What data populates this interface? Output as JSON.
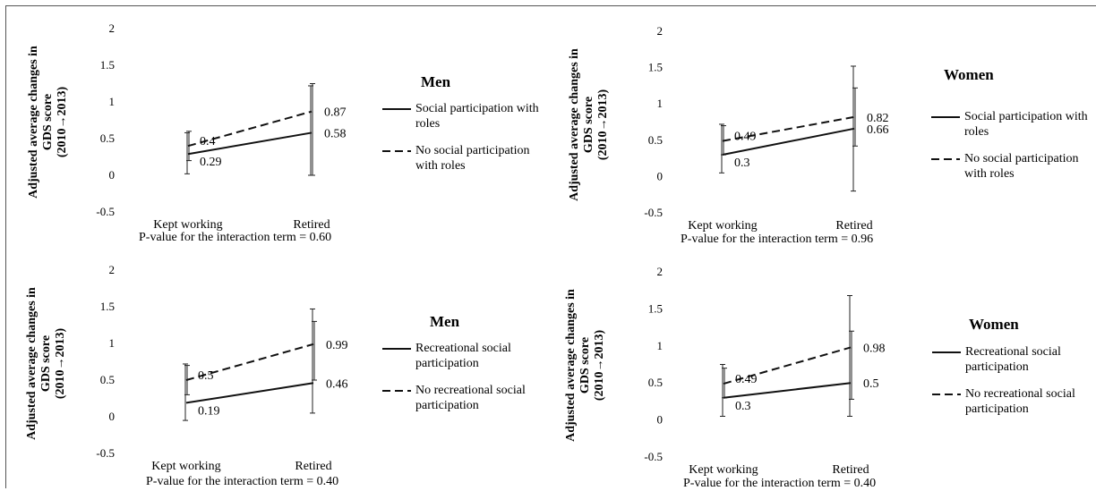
{
  "chart_data": [
    {
      "type": "line",
      "panel_title": "Men",
      "ylabel": [
        "Adjusted average changes in",
        "GDS score",
        "(2010→2013)"
      ],
      "categories": [
        "Kept working",
        "Retired"
      ],
      "yticks": [
        "2",
        "1.5",
        "1",
        "0.5",
        "0",
        "-0.5"
      ],
      "ylim": [
        -0.5,
        2
      ],
      "series": [
        {
          "name": "Social participation with roles",
          "dash": "solid",
          "values": [
            0.29,
            0.58
          ],
          "labels": [
            "0.29",
            "0.58"
          ],
          "err_low": [
            0.02,
            0.0
          ],
          "err_high": [
            0.58,
            1.22
          ]
        },
        {
          "name": "No social participation with roles",
          "dash": "dashed",
          "values": [
            0.4,
            0.87
          ],
          "labels": [
            "0.4",
            "0.87"
          ],
          "err_low": [
            0.2,
            0.0
          ],
          "err_high": [
            0.6,
            1.25
          ]
        }
      ],
      "pvalue_text": "P-value for the interaction term = 0.60"
    },
    {
      "type": "line",
      "panel_title": "Women",
      "ylabel": [
        "Adjusted average changes in",
        "GDS score",
        "(2010→2013)"
      ],
      "categories": [
        "Kept working",
        "Retired"
      ],
      "yticks": [
        "2",
        "1.5",
        "1",
        "0.5",
        "0",
        "-0.5"
      ],
      "ylim": [
        -0.5,
        2
      ],
      "series": [
        {
          "name": "Social participation with roles",
          "dash": "solid",
          "values": [
            0.3,
            0.66
          ],
          "labels": [
            "0.3",
            "0.66"
          ],
          "err_low": [
            0.05,
            -0.2
          ],
          "err_high": [
            0.72,
            1.52
          ]
        },
        {
          "name": "No social participation with roles",
          "dash": "dashed",
          "values": [
            0.49,
            0.82
          ],
          "labels": [
            "0.49",
            "0.82"
          ],
          "err_low": [
            0.3,
            0.42
          ],
          "err_high": [
            0.7,
            1.22
          ]
        }
      ],
      "pvalue_text": "P-value for the interaction term = 0.96"
    },
    {
      "type": "line",
      "panel_title": "Men",
      "ylabel": [
        "Adjusted average changes in",
        "GDS score",
        "(2010→2013)"
      ],
      "categories": [
        "Kept working",
        "Retired"
      ],
      "yticks": [
        "2",
        "1.5",
        "1",
        "0.5",
        "0",
        "-0.5"
      ],
      "ylim": [
        -0.5,
        2
      ],
      "series": [
        {
          "name": "Recreational social participation",
          "dash": "solid",
          "values": [
            0.19,
            0.46
          ],
          "labels": [
            "0.19",
            "0.46"
          ],
          "err_low": [
            -0.05,
            0.05
          ],
          "err_high": [
            0.72,
            1.47
          ]
        },
        {
          "name": "No recreational social participation",
          "dash": "dashed",
          "values": [
            0.5,
            0.99
          ],
          "labels": [
            "0.5",
            "0.99"
          ],
          "err_low": [
            0.3,
            0.5
          ],
          "err_high": [
            0.7,
            1.3
          ]
        }
      ],
      "pvalue_text": "P-value for the interaction term = 0.40"
    },
    {
      "type": "line",
      "panel_title": "Women",
      "ylabel": [
        "Adjusted average changes in",
        "GDS score",
        "(2010→2013)"
      ],
      "categories": [
        "Kept working",
        "Retired"
      ],
      "yticks": [
        "2",
        "1.5",
        "1",
        "0.5",
        "0",
        "-0.5"
      ],
      "ylim": [
        -0.5,
        2
      ],
      "series": [
        {
          "name": "Recreational social participation",
          "dash": "solid",
          "values": [
            0.3,
            0.5
          ],
          "labels": [
            "0.3",
            "0.5"
          ],
          "err_low": [
            0.05,
            0.05
          ],
          "err_high": [
            0.75,
            1.68
          ]
        },
        {
          "name": "No recreational social participation",
          "dash": "dashed",
          "values": [
            0.49,
            0.98
          ],
          "labels": [
            "0.49",
            "0.98"
          ],
          "err_low": [
            0.3,
            0.28
          ],
          "err_high": [
            0.7,
            1.2
          ]
        }
      ],
      "pvalue_text": "P-value for the interaction term = 0.40"
    }
  ]
}
